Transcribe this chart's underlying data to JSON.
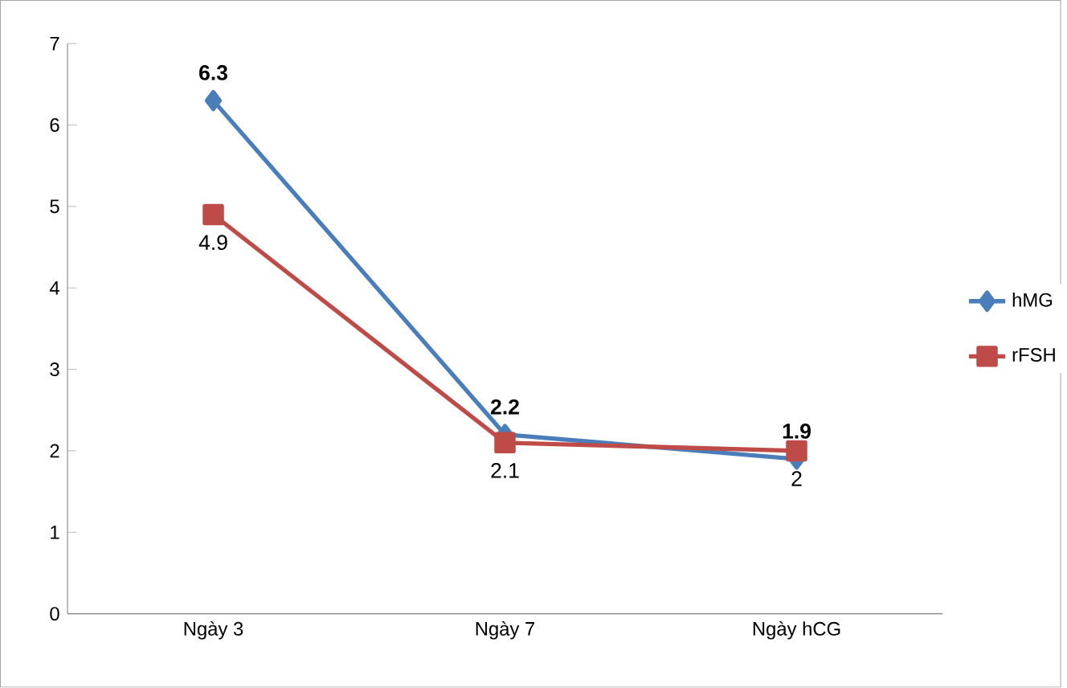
{
  "chart_data": {
    "type": "line",
    "categories": [
      "Ngày 3",
      "Ngày 7",
      "Ngày hCG"
    ],
    "series": [
      {
        "name": "hMG",
        "color": "#4a7ebb",
        "marker": "diamond",
        "values": [
          6.3,
          2.2,
          1.9
        ],
        "value_labels": [
          "6.3",
          "2.2",
          "1.9"
        ]
      },
      {
        "name": "rFSH",
        "color": "#be4b48",
        "marker": "square",
        "values": [
          4.9,
          2.1,
          2.0
        ],
        "value_labels": [
          "4.9",
          "2.1",
          "2"
        ]
      }
    ],
    "ylim": [
      0,
      7
    ],
    "yticks": [
      0,
      1,
      2,
      3,
      4,
      5,
      6,
      7
    ],
    "grid": false,
    "legend": "right"
  }
}
